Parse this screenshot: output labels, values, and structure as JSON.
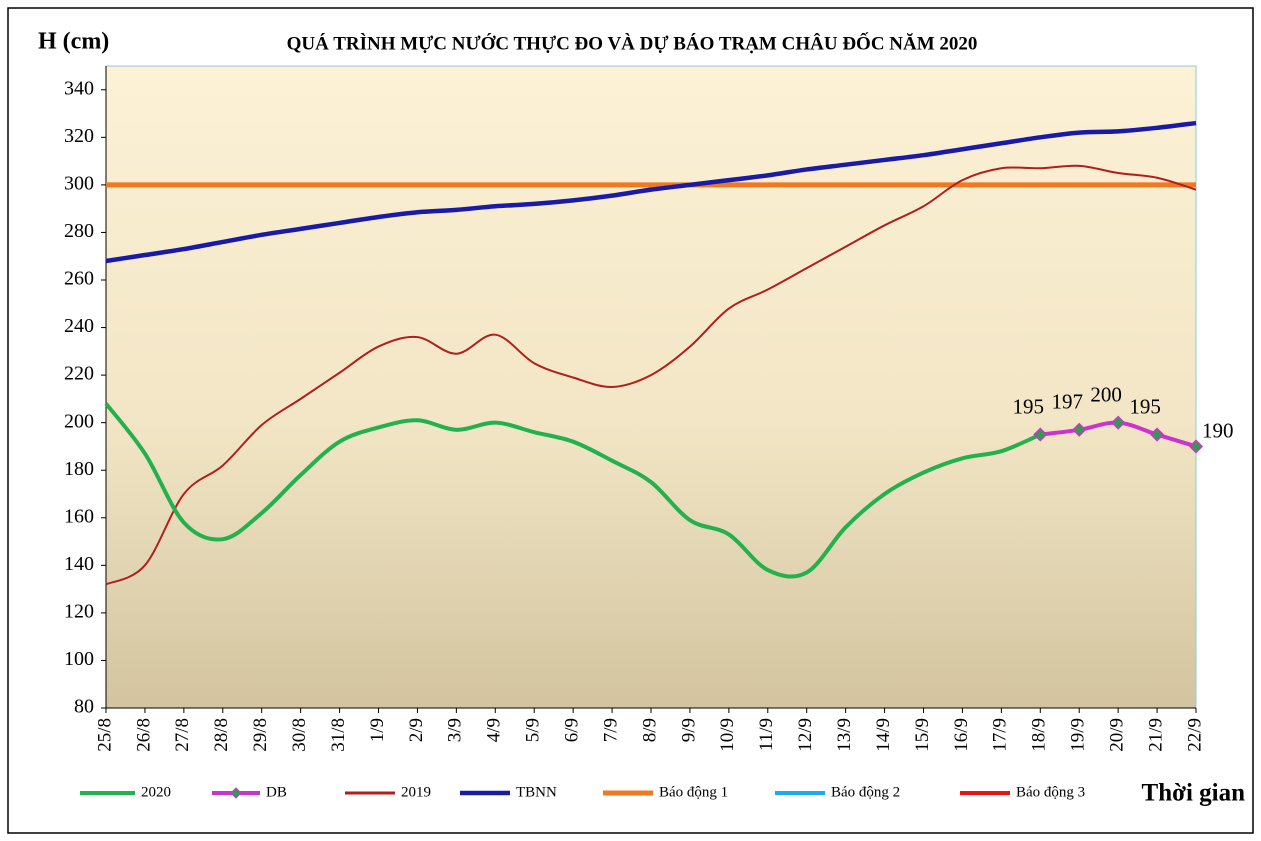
{
  "chart_data": {
    "type": "line",
    "title": "QUÁ TRÌNH MỰC NƯỚC THỰC ĐO VÀ DỰ BÁO TRẠM CHÂU ĐỐC NĂM  2020",
    "y_label": "H (cm)",
    "x_label": "Thời gian",
    "categories": [
      "25/8",
      "26/8",
      "27/8",
      "28/8",
      "29/8",
      "30/8",
      "31/8",
      "1/9",
      "2/9",
      "3/9",
      "4/9",
      "5/9",
      "6/9",
      "7/9",
      "8/9",
      "9/9",
      "10/9",
      "11/9",
      "12/9",
      "13/9",
      "14/9",
      "15/9",
      "16/9",
      "17/9",
      "18/9",
      "19/9",
      "20/9",
      "21/9",
      "22/9"
    ],
    "series": [
      {
        "name": "2020",
        "color": "#22b14c",
        "values": [
          208,
          187,
          158,
          151,
          162,
          178,
          192,
          198,
          201,
          197,
          200,
          196,
          192,
          184,
          175,
          159,
          153,
          138,
          137,
          156,
          170,
          179,
          185,
          188,
          195,
          null,
          null,
          null,
          null
        ]
      },
      {
        "name": "DB",
        "color": "#cc33cc",
        "marker_color": "#2e9e4e",
        "data_labels": true,
        "values": [
          null,
          null,
          null,
          null,
          null,
          null,
          null,
          null,
          null,
          null,
          null,
          null,
          null,
          null,
          null,
          null,
          null,
          null,
          null,
          null,
          null,
          null,
          null,
          null,
          195,
          197,
          200,
          195,
          190
        ]
      },
      {
        "name": "2019",
        "color": "#b01e1e",
        "values": [
          132,
          140,
          170,
          182,
          199,
          210,
          221,
          232,
          236,
          229,
          237,
          225,
          219,
          215,
          220,
          232,
          248,
          256,
          265,
          274,
          283,
          291,
          302,
          307,
          307,
          308,
          305,
          303,
          298
        ]
      },
      {
        "name": "TBNN",
        "color": "#1a1aa8",
        "values": [
          268,
          270.5,
          273,
          276,
          279,
          281.5,
          284,
          286.5,
          288.5,
          289.5,
          291,
          292,
          293.5,
          295.5,
          298,
          300,
          302,
          304,
          306.5,
          308.5,
          310.5,
          312.5,
          315,
          317.5,
          320,
          322,
          322.5,
          324,
          326
        ]
      },
      {
        "name": "Báo động 1",
        "color": "#f07820",
        "values": [
          300,
          300,
          300,
          300,
          300,
          300,
          300,
          300,
          300,
          300,
          300,
          300,
          300,
          300,
          300,
          300,
          300,
          300,
          300,
          300,
          300,
          300,
          300,
          300,
          300,
          300,
          300,
          300,
          300
        ]
      },
      {
        "name": "Báo động 2",
        "color": "#1eaaf0",
        "values": [
          null,
          null,
          null,
          null,
          null,
          null,
          null,
          null,
          null,
          null,
          null,
          null,
          null,
          null,
          null,
          null,
          null,
          null,
          null,
          null,
          null,
          null,
          null,
          null,
          null,
          null,
          null,
          null,
          null
        ]
      },
      {
        "name": "Báo động 3",
        "color": "#ee1111",
        "values": [
          null,
          null,
          null,
          null,
          null,
          null,
          null,
          null,
          null,
          null,
          null,
          null,
          null,
          null,
          null,
          null,
          null,
          null,
          null,
          null,
          null,
          null,
          null,
          null,
          null,
          null,
          null,
          null,
          null
        ]
      }
    ],
    "ylim": [
      80,
      350
    ],
    "yticks": [
      80,
      100,
      120,
      140,
      160,
      180,
      200,
      220,
      240,
      260,
      280,
      300,
      320,
      340
    ]
  }
}
